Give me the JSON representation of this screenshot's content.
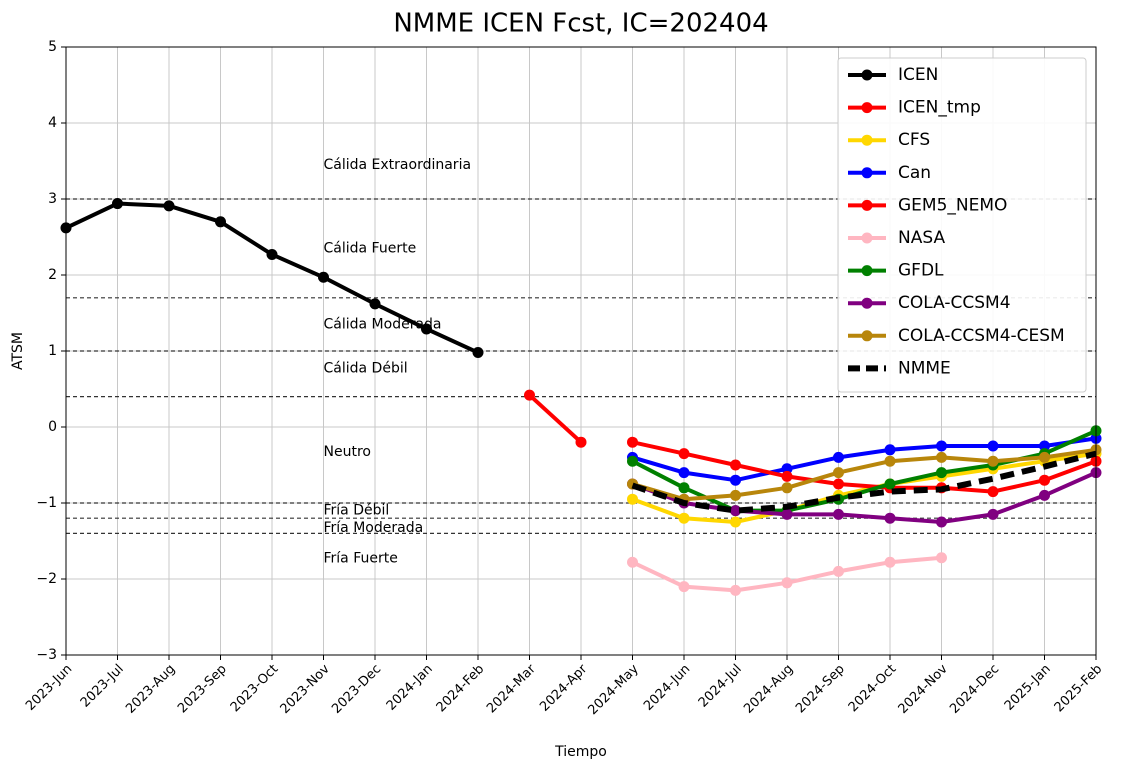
{
  "chart_data": {
    "type": "line",
    "title": "NMME ICEN Fcst, IC=202404",
    "xlabel": "Tiempo",
    "ylabel": "ATSM",
    "categories": [
      "2023-Jun",
      "2023-Jul",
      "2023-Aug",
      "2023-Sep",
      "2023-Oct",
      "2023-Nov",
      "2023-Dec",
      "2024-Jan",
      "2024-Feb",
      "2024-Mar",
      "2024-Apr",
      "2024-May",
      "2024-Jun",
      "2024-Jul",
      "2024-Aug",
      "2024-Sep",
      "2024-Oct",
      "2024-Nov",
      "2024-Dec",
      "2025-Jan",
      "2025-Feb"
    ],
    "ylim": [
      -3,
      5
    ],
    "yticks": [
      {
        "value": -3,
        "label": "−3"
      },
      {
        "value": -2,
        "label": "−2"
      },
      {
        "value": -1,
        "label": "−1"
      },
      0,
      1,
      2,
      3,
      4,
      5
    ],
    "grid": true,
    "legend": "upper right",
    "thresholds": [
      3,
      1.7,
      1,
      0.4,
      -1,
      -1.2,
      -1.4
    ],
    "annotations": [
      {
        "text": "Cálida Extraordinaria",
        "y": 3.45
      },
      {
        "text": "Cálida Fuerte",
        "y": 2.35
      },
      {
        "text": "Cálida Moderada",
        "y": 1.35
      },
      {
        "text": "Cálida Débil",
        "y": 0.77
      },
      {
        "text": "Neutro",
        "y": -0.33
      },
      {
        "text": "Fría Débil",
        "y": -1.1
      },
      {
        "text": "Fría Moderada",
        "y": -1.33
      },
      {
        "text": "Fría Fuerte",
        "y": -1.73
      }
    ],
    "series": [
      {
        "name": "ICEN",
        "color": "#000000",
        "marker": true,
        "linestyle": "solid",
        "values": [
          2.62,
          2.94,
          2.91,
          2.7,
          2.27,
          1.97,
          1.62,
          1.29,
          0.98,
          null,
          null,
          null,
          null,
          null,
          null,
          null,
          null,
          null,
          null,
          null,
          null
        ]
      },
      {
        "name": "ICEN_tmp",
        "color": "#ff0000",
        "marker": true,
        "linestyle": "solid",
        "values": [
          null,
          null,
          null,
          null,
          null,
          null,
          null,
          null,
          null,
          0.42,
          -0.2,
          null,
          null,
          null,
          null,
          null,
          null,
          null,
          null,
          null,
          null
        ]
      },
      {
        "name": "CFS",
        "color": "#ffd700",
        "marker": true,
        "linestyle": "solid",
        "values": [
          null,
          null,
          null,
          null,
          null,
          null,
          null,
          null,
          null,
          null,
          null,
          -0.95,
          -1.2,
          -1.25,
          -1.1,
          -0.9,
          -0.75,
          -0.65,
          -0.55,
          -0.45,
          -0.35
        ]
      },
      {
        "name": "Can",
        "color": "#0000ff",
        "marker": true,
        "linestyle": "solid",
        "values": [
          null,
          null,
          null,
          null,
          null,
          null,
          null,
          null,
          null,
          null,
          null,
          -0.4,
          -0.6,
          -0.7,
          -0.55,
          -0.4,
          -0.3,
          -0.25,
          -0.25,
          -0.25,
          -0.15
        ]
      },
      {
        "name": "GEM5_NEMO",
        "color": "#ff0000",
        "marker": true,
        "linestyle": "solid",
        "values": [
          null,
          null,
          null,
          null,
          null,
          null,
          null,
          null,
          null,
          null,
          null,
          -0.2,
          -0.35,
          -0.5,
          -0.65,
          -0.75,
          -0.8,
          -0.8,
          -0.85,
          -0.7,
          -0.45
        ]
      },
      {
        "name": "NASA",
        "color": "#ffb6c1",
        "marker": true,
        "linestyle": "solid",
        "values": [
          null,
          null,
          null,
          null,
          null,
          null,
          null,
          null,
          null,
          null,
          null,
          -1.78,
          -2.1,
          -2.15,
          -2.05,
          -1.9,
          -1.78,
          -1.72,
          null,
          null,
          null
        ]
      },
      {
        "name": "GFDL",
        "color": "#008000",
        "marker": true,
        "linestyle": "solid",
        "values": [
          null,
          null,
          null,
          null,
          null,
          null,
          null,
          null,
          null,
          null,
          null,
          -0.45,
          -0.8,
          -1.1,
          -1.1,
          -0.95,
          -0.75,
          -0.6,
          -0.5,
          -0.35,
          -0.05
        ]
      },
      {
        "name": "COLA-CCSM4",
        "color": "#800080",
        "marker": true,
        "linestyle": "solid",
        "values": [
          null,
          null,
          null,
          null,
          null,
          null,
          null,
          null,
          null,
          null,
          null,
          -0.75,
          -1.0,
          -1.1,
          -1.15,
          -1.15,
          -1.2,
          -1.25,
          -1.15,
          -0.9,
          -0.6
        ]
      },
      {
        "name": "COLA-CCSM4-CESM",
        "color": "#b8860b",
        "marker": true,
        "linestyle": "solid",
        "values": [
          null,
          null,
          null,
          null,
          null,
          null,
          null,
          null,
          null,
          null,
          null,
          -0.75,
          -0.95,
          -0.9,
          -0.8,
          -0.6,
          -0.45,
          -0.4,
          -0.45,
          -0.4,
          -0.3
        ]
      },
      {
        "name": "NMME",
        "color": "#000000",
        "marker": false,
        "linestyle": "dashed",
        "values": [
          null,
          null,
          null,
          null,
          null,
          null,
          null,
          null,
          null,
          null,
          null,
          -0.77,
          -1.0,
          -1.1,
          -1.05,
          -0.93,
          -0.85,
          -0.82,
          -0.68,
          -0.52,
          -0.35
        ]
      }
    ]
  }
}
